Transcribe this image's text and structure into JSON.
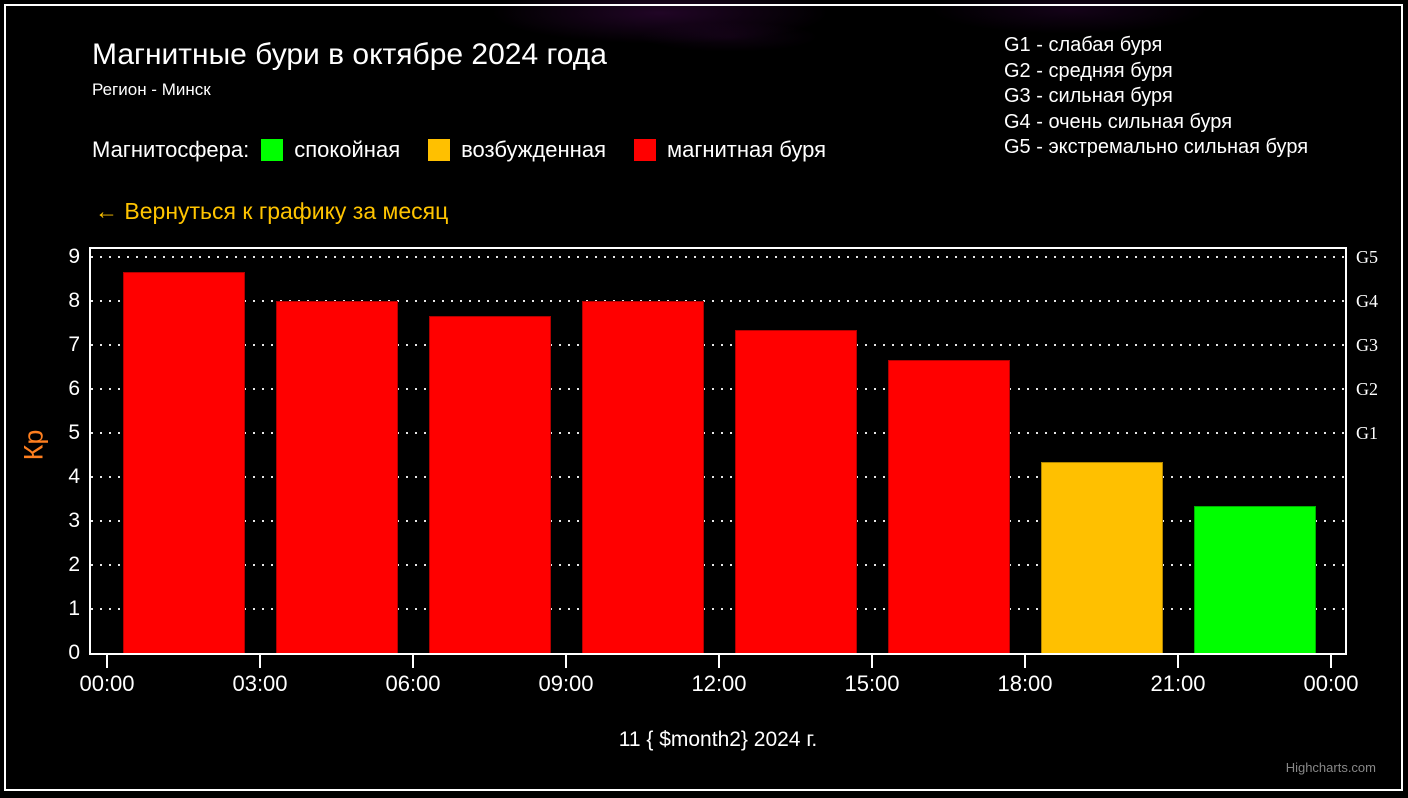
{
  "page": {
    "background_color": "#000000",
    "frame_border_color": "#FFFFFF"
  },
  "header": {
    "title": "Магнитные бури в октябре 2024 года",
    "subtitle": "Регион - Минск"
  },
  "storm_scale": {
    "items": [
      {
        "label": "G1 - слабая буря"
      },
      {
        "label": "G2 - средняя буря"
      },
      {
        "label": "G3 - сильная буря"
      },
      {
        "label": "G4 - очень сильная буря"
      },
      {
        "label": "G5 - экстремально сильная буря"
      }
    ]
  },
  "legend": {
    "title": "Магнитосфера:",
    "items": [
      {
        "label": "спокойная",
        "color": "#00FF00"
      },
      {
        "label": "возбужденная",
        "color": "#FFC000"
      },
      {
        "label": "магнитная буря",
        "color": "#FF0000"
      }
    ]
  },
  "back_link": {
    "label": "← Вернуться к графику за месяц",
    "color": "#FFC400"
  },
  "chart_data": {
    "type": "bar",
    "title": "Магнитные бури в октябре 2024 года",
    "xlabel": "11 { $month2} 2024 г.",
    "ylabel": "Кр",
    "ylabel_color": "#FF7F1F",
    "ylim": [
      0,
      9.2
    ],
    "yticks": [
      0,
      1,
      2,
      3,
      4,
      5,
      6,
      7,
      8,
      9
    ],
    "x_tick_labels": [
      "00:00",
      "03:00",
      "06:00",
      "09:00",
      "12:00",
      "15:00",
      "18:00",
      "21:00",
      "00:00"
    ],
    "grid": "horizontal dotted white",
    "legend_position": "top custom",
    "right_axis_labels": [
      {
        "label": "G1",
        "value": 5
      },
      {
        "label": "G2",
        "value": 6
      },
      {
        "label": "G3",
        "value": 7
      },
      {
        "label": "G4",
        "value": 8
      },
      {
        "label": "G5",
        "value": 9
      }
    ],
    "bars": [
      {
        "time": "00:00-03:00",
        "value": 8.67,
        "color": "#FF0000",
        "state": "магнитная буря"
      },
      {
        "time": "03:00-06:00",
        "value": 8.0,
        "color": "#FF0000",
        "state": "магнитная буря"
      },
      {
        "time": "06:00-09:00",
        "value": 7.67,
        "color": "#FF0000",
        "state": "магнитная буря"
      },
      {
        "time": "09:00-12:00",
        "value": 8.0,
        "color": "#FF0000",
        "state": "магнитная буря"
      },
      {
        "time": "12:00-15:00",
        "value": 7.33,
        "color": "#FF0000",
        "state": "магнитная буря"
      },
      {
        "time": "15:00-18:00",
        "value": 6.67,
        "color": "#FF0000",
        "state": "магнитная буря"
      },
      {
        "time": "18:00-21:00",
        "value": 4.33,
        "color": "#FFC000",
        "state": "возбужденная"
      },
      {
        "time": "21:00-00:00",
        "value": 3.33,
        "color": "#00FF00",
        "state": "спокойная"
      }
    ]
  },
  "credits": {
    "label": "Highcharts.com",
    "color": "#888888"
  }
}
